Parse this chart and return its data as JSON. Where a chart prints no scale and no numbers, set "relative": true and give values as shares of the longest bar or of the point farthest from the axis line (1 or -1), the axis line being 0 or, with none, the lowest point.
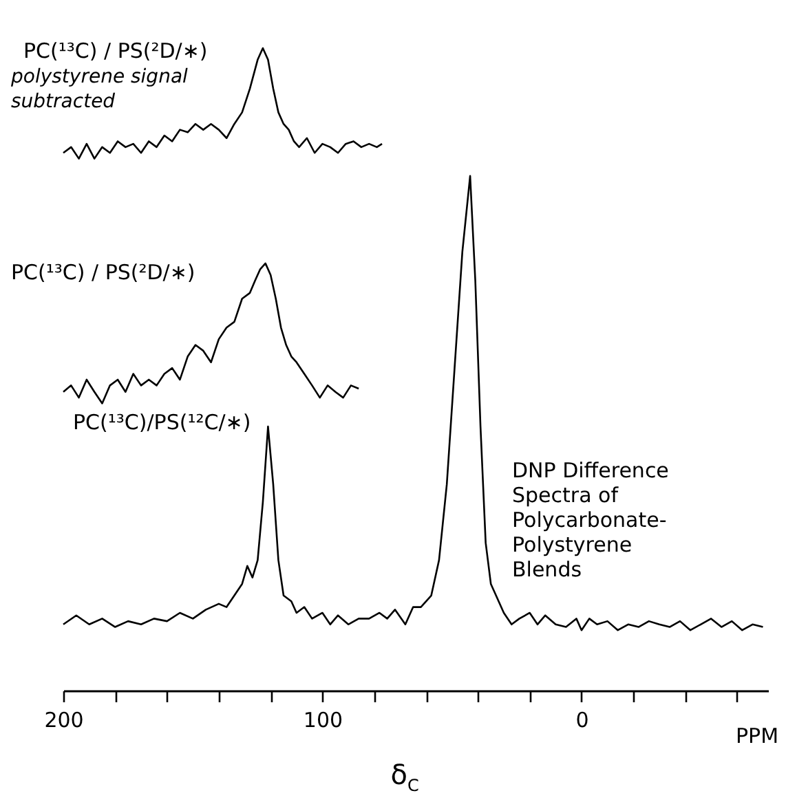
{
  "chart_data": {
    "type": "line",
    "relative": true,
    "xlabel": "δ$_{C}$",
    "legend": false,
    "grid": false,
    "marker": "none",
    "line_style": "solid",
    "xlim": [
      200,
      -72
    ],
    "xticks": [
      200,
      {
        "value": 180,
        "label": null
      },
      {
        "value": 160,
        "label": null
      },
      {
        "value": 140,
        "label": null
      },
      {
        "value": 120,
        "label": null
      },
      100,
      {
        "value": 80,
        "label": null
      },
      {
        "value": 60,
        "label": null
      },
      {
        "value": 40,
        "label": null
      },
      {
        "value": 20,
        "label": null
      },
      0,
      {
        "value": -20,
        "label": null
      },
      {
        "value": -40,
        "label": null
      },
      {
        "value": -60,
        "label": null
      }
    ],
    "annotations": [
      "polystyrene signal subtracted",
      "DNP Difference Spectra of Polycarbonate-Polystyrene Blends",
      "PPM"
    ],
    "series": [
      {
        "name": "PC(¹³C) / PS(²D/∗)",
        "color": "#000000",
        "x": [
          200,
          197,
          194,
          191,
          188,
          185,
          182,
          179,
          176,
          173,
          170,
          167,
          164,
          161,
          158,
          155,
          152,
          149,
          146,
          143,
          140,
          137,
          134,
          131,
          128,
          125,
          123,
          121,
          119,
          117,
          115,
          113,
          111,
          109,
          106,
          103,
          100,
          97,
          94,
          91,
          88,
          85,
          82,
          79,
          77
        ],
        "values": [
          0.837,
          0.846,
          0.828,
          0.851,
          0.828,
          0.846,
          0.837,
          0.855,
          0.846,
          0.851,
          0.837,
          0.855,
          0.846,
          0.864,
          0.855,
          0.873,
          0.869,
          0.882,
          0.873,
          0.882,
          0.873,
          0.86,
          0.882,
          0.9,
          0.937,
          0.982,
          1.0,
          0.982,
          0.937,
          0.9,
          0.882,
          0.873,
          0.855,
          0.846,
          0.86,
          0.837,
          0.851,
          0.846,
          0.837,
          0.851,
          0.855,
          0.846,
          0.851,
          0.846,
          0.851
        ]
      },
      {
        "name": "PC(¹³C) / PS(²D/∗)",
        "color": "#000000",
        "x": [
          200,
          197,
          194,
          191,
          188,
          185,
          182,
          179,
          176,
          173,
          170,
          167,
          164,
          161,
          158,
          155,
          152,
          149,
          146,
          143,
          140,
          137,
          134,
          131,
          128,
          126,
          124,
          122,
          120,
          118,
          116,
          114,
          112,
          110,
          107,
          104,
          101,
          98,
          95,
          92,
          89,
          86
        ],
        "values": [
          0.465,
          0.475,
          0.456,
          0.484,
          0.465,
          0.447,
          0.475,
          0.484,
          0.465,
          0.493,
          0.475,
          0.484,
          0.475,
          0.493,
          0.502,
          0.484,
          0.52,
          0.538,
          0.529,
          0.511,
          0.547,
          0.565,
          0.574,
          0.61,
          0.619,
          0.638,
          0.656,
          0.665,
          0.647,
          0.61,
          0.565,
          0.538,
          0.52,
          0.511,
          0.493,
          0.475,
          0.456,
          0.475,
          0.465,
          0.456,
          0.475,
          0.47
        ]
      },
      {
        "name": "PC(¹³C)/PS(¹²C/∗)",
        "color": "#000000",
        "x": [
          200,
          195,
          190,
          185,
          180,
          175,
          170,
          165,
          160,
          155,
          150,
          145,
          140,
          137,
          134,
          131,
          129,
          127,
          125,
          123,
          121,
          119,
          117,
          115,
          112,
          110,
          107,
          104,
          100,
          97,
          94,
          90,
          86,
          82,
          78,
          75,
          72,
          68,
          65,
          62,
          58,
          55,
          52,
          49,
          46,
          43,
          41,
          39,
          37,
          35,
          33,
          30,
          27,
          24,
          20,
          17,
          14,
          10,
          6,
          2,
          0,
          -3,
          -6,
          -10,
          -14,
          -18,
          -22,
          -26,
          -30,
          -34,
          -38,
          -42,
          -46,
          -50,
          -54,
          -58,
          -62,
          -66,
          -70
        ],
        "values": [
          0.103,
          0.117,
          0.103,
          0.112,
          0.099,
          0.108,
          0.103,
          0.112,
          0.108,
          0.121,
          0.112,
          0.126,
          0.135,
          0.13,
          0.148,
          0.166,
          0.194,
          0.176,
          0.203,
          0.293,
          0.411,
          0.321,
          0.203,
          0.148,
          0.139,
          0.121,
          0.13,
          0.112,
          0.121,
          0.103,
          0.117,
          0.103,
          0.112,
          0.112,
          0.121,
          0.112,
          0.126,
          0.103,
          0.13,
          0.13,
          0.148,
          0.203,
          0.321,
          0.502,
          0.683,
          0.801,
          0.638,
          0.411,
          0.23,
          0.166,
          0.148,
          0.121,
          0.103,
          0.112,
          0.121,
          0.103,
          0.117,
          0.103,
          0.099,
          0.112,
          0.094,
          0.112,
          0.103,
          0.108,
          0.094,
          0.103,
          0.099,
          0.108,
          0.103,
          0.099,
          0.108,
          0.094,
          0.103,
          0.112,
          0.099,
          0.108,
          0.094,
          0.103,
          0.099
        ]
      }
    ]
  }
}
